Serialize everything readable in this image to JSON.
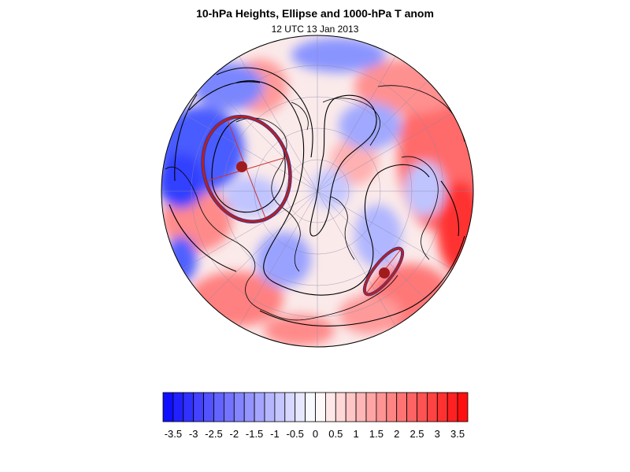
{
  "header": {
    "title": "10-hPa Heights, Ellipse and 1000-hPa T anom",
    "subtitle": "12 UTC 13 Jan 2013"
  },
  "colorbar": {
    "min": -3.75,
    "max": 3.75,
    "step": 0.25,
    "label_values": [
      -3.5,
      -3,
      -2.5,
      -2,
      -1.5,
      -1,
      -0.5,
      0,
      0.5,
      1,
      1.5,
      2,
      2.5,
      3,
      3.5
    ],
    "labels": [
      "-3.5",
      "-3",
      "-2.5",
      "-2",
      "-1.5",
      "-1",
      "-0.5",
      "0",
      "0.5",
      "1",
      "1.5",
      "2",
      "2.5",
      "3",
      "3.5"
    ],
    "color_negative": "#1010ff",
    "color_positive": "#ff1010"
  },
  "map": {
    "projection": "orthographic-polar",
    "fill_variable": "1000-hPa T anom",
    "contour_variable": "10-hPa Heights",
    "ellipse_color": "#b22222",
    "ellipse_outline_color": "#2233aa",
    "contour_color": "#000000",
    "ellipses": [
      {
        "name": "major-ellipse",
        "semi_major": 0.3,
        "semi_minor": 0.26
      },
      {
        "name": "minor-ellipse",
        "semi_major": 0.18,
        "semi_minor": 0.045
      }
    ]
  }
}
